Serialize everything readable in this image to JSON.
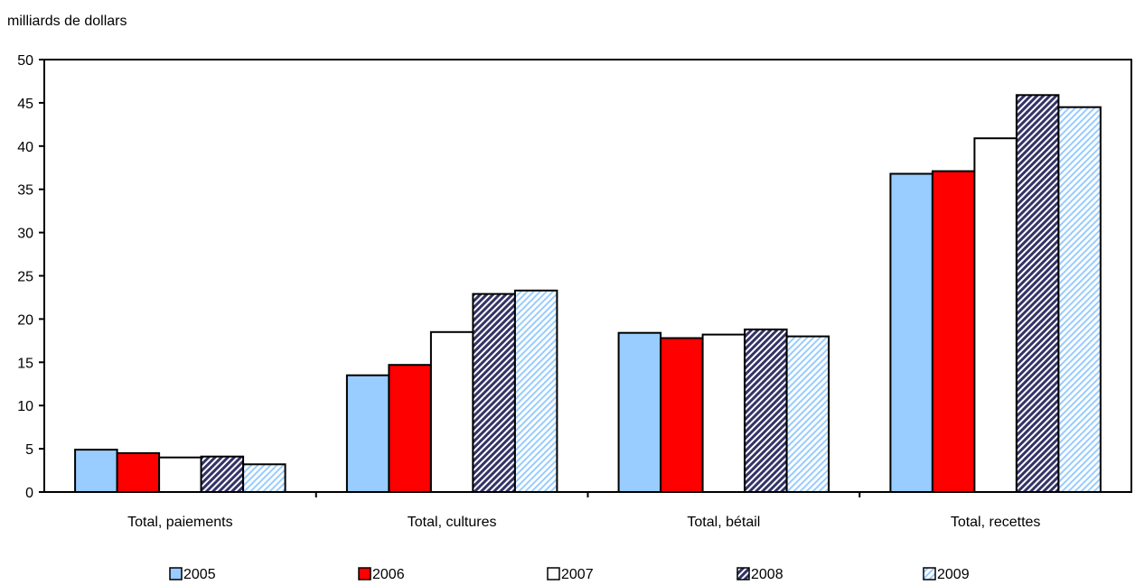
{
  "chart_data": {
    "type": "bar",
    "ylabel": "milliards de dollars",
    "ylim": [
      0,
      50
    ],
    "yticks": [
      0,
      5,
      10,
      15,
      20,
      25,
      30,
      35,
      40,
      45,
      50
    ],
    "grid": false,
    "legend_position": "bottom",
    "categories": [
      "Total, paiements",
      "Total, cultures",
      "Total, bétail",
      "Total, recettes"
    ],
    "series": [
      {
        "name": "2005",
        "values": [
          4.9,
          13.5,
          18.4,
          36.8
        ],
        "color": "#99CCFF",
        "pattern": "solid"
      },
      {
        "name": "2006",
        "values": [
          4.5,
          14.7,
          17.8,
          37.1
        ],
        "color": "#FF0000",
        "pattern": "solid"
      },
      {
        "name": "2007",
        "values": [
          4.0,
          18.5,
          18.2,
          40.9
        ],
        "color": "#FFFFFF",
        "pattern": "solid"
      },
      {
        "name": "2008",
        "values": [
          4.1,
          22.9,
          18.8,
          45.9
        ],
        "color": "#333366",
        "pattern": "hatch-dark"
      },
      {
        "name": "2009",
        "values": [
          3.2,
          23.3,
          18.0,
          44.5
        ],
        "color": "#99CCFF",
        "pattern": "hatch-light"
      }
    ]
  }
}
